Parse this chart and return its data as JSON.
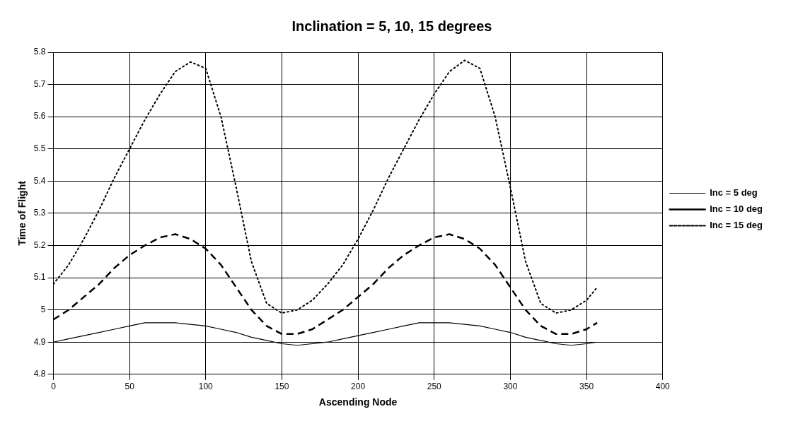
{
  "chart_data": {
    "type": "line",
    "title": "Inclination = 5, 10, 15 degrees",
    "xlabel": "Ascending Node",
    "ylabel": "Time of Flight",
    "x": [
      0,
      10,
      20,
      30,
      40,
      50,
      60,
      70,
      80,
      90,
      100,
      110,
      120,
      130,
      140,
      150,
      160,
      170,
      180,
      190,
      200,
      210,
      220,
      230,
      240,
      250,
      260,
      270,
      280,
      290,
      300,
      310,
      320,
      330,
      340,
      350,
      357
    ],
    "series": [
      {
        "name": "Inc = 5 deg",
        "color": "#000000",
        "line_style": "solid",
        "values": [
          4.9,
          4.91,
          4.92,
          4.93,
          4.94,
          4.95,
          4.96,
          4.96,
          4.96,
          4.955,
          4.95,
          4.94,
          4.93,
          4.915,
          4.905,
          4.895,
          4.89,
          4.895,
          4.9,
          4.91,
          4.92,
          4.93,
          4.94,
          4.95,
          4.96,
          4.96,
          4.96,
          4.955,
          4.95,
          4.94,
          4.93,
          4.915,
          4.905,
          4.895,
          4.89,
          4.895,
          4.9
        ]
      },
      {
        "name": "Inc = 10 deg",
        "color": "#000000",
        "line_style": "dashed",
        "values": [
          4.97,
          5.0,
          5.04,
          5.08,
          5.13,
          5.17,
          5.2,
          5.225,
          5.235,
          5.22,
          5.19,
          5.14,
          5.07,
          5.0,
          4.95,
          4.925,
          4.925,
          4.94,
          4.97,
          5.0,
          5.04,
          5.08,
          5.13,
          5.17,
          5.2,
          5.225,
          5.235,
          5.22,
          5.19,
          5.14,
          5.07,
          5.0,
          4.95,
          4.925,
          4.925,
          4.94,
          4.96
        ]
      },
      {
        "name": "Inc = 15 deg",
        "color": "#000000",
        "line_style": "dotted",
        "values": [
          5.08,
          5.14,
          5.22,
          5.31,
          5.41,
          5.5,
          5.59,
          5.67,
          5.74,
          5.77,
          5.75,
          5.6,
          5.38,
          5.15,
          5.02,
          4.99,
          5.0,
          5.03,
          5.08,
          5.14,
          5.22,
          5.31,
          5.41,
          5.5,
          5.59,
          5.67,
          5.74,
          5.775,
          5.75,
          5.6,
          5.38,
          5.15,
          5.02,
          4.99,
          5.0,
          5.03,
          5.07
        ]
      }
    ],
    "xlim": [
      0,
      400
    ],
    "xticks": [
      0,
      50,
      100,
      150,
      200,
      250,
      300,
      350,
      400
    ],
    "ylim": [
      4.8,
      5.8
    ],
    "yticks": [
      4.8,
      4.9,
      5,
      5.1,
      5.2,
      5.3,
      5.4,
      5.5,
      5.6,
      5.7,
      5.8
    ],
    "grid": true,
    "legend": "right",
    "marker": "none"
  }
}
